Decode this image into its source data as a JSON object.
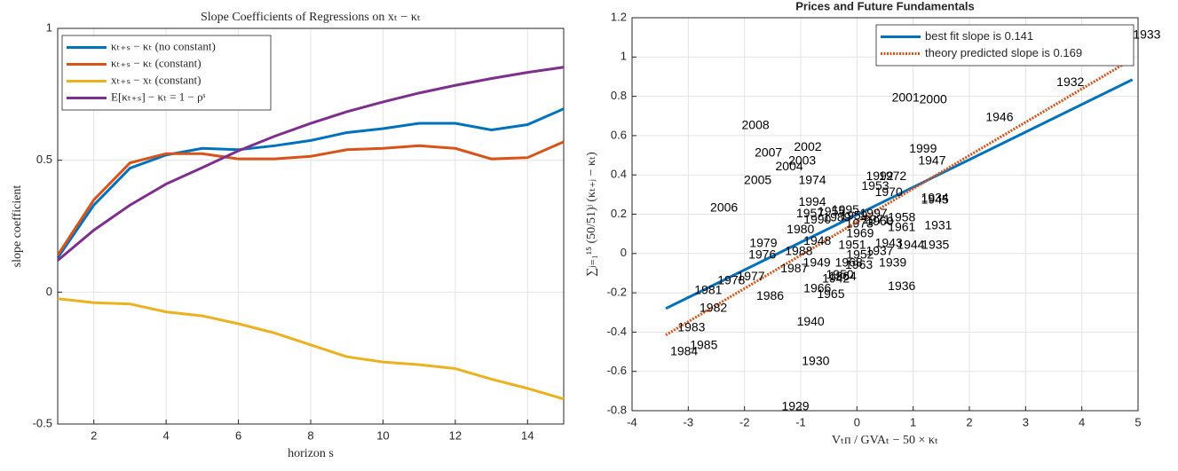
{
  "chart_data": [
    {
      "type": "line",
      "title": "Slope Coefficients of Regressions on xₜ − κₜ",
      "xlabel": "horizon s",
      "ylabel": "slope coefficient",
      "x": [
        1,
        2,
        3,
        4,
        5,
        6,
        7,
        8,
        9,
        10,
        11,
        12,
        13,
        14,
        15
      ],
      "xlim": [
        1,
        15
      ],
      "xticks": [
        2,
        4,
        6,
        8,
        10,
        12,
        14
      ],
      "ylim": [
        -0.5,
        1
      ],
      "yticks": [
        -0.5,
        0,
        0.5,
        1
      ],
      "grid": true,
      "legend": "upper left",
      "series": [
        {
          "name": "κₜ₊ₛ − κₜ (no constant)",
          "color": "#0072bd",
          "values": [
            0.13,
            0.33,
            0.47,
            0.52,
            0.545,
            0.54,
            0.555,
            0.575,
            0.605,
            0.62,
            0.64,
            0.64,
            0.615,
            0.635,
            0.695
          ]
        },
        {
          "name": "κₜ₊ₛ − κₜ (constant)",
          "color": "#d95319",
          "values": [
            0.14,
            0.35,
            0.49,
            0.525,
            0.525,
            0.505,
            0.505,
            0.515,
            0.54,
            0.545,
            0.555,
            0.545,
            0.505,
            0.51,
            0.57
          ]
        },
        {
          "name": "xₜ₊ₛ − xₜ (constant)",
          "color": "#edb120",
          "values": [
            -0.025,
            -0.04,
            -0.045,
            -0.075,
            -0.09,
            -0.12,
            -0.155,
            -0.2,
            -0.245,
            -0.265,
            -0.275,
            -0.29,
            -0.33,
            -0.365,
            -0.405
          ]
        },
        {
          "name": "E[κₜ₊ₛ] − κₜ = 1 − ρˢ",
          "color": "#7e2f8e",
          "values": [
            0.12,
            0.235,
            0.33,
            0.41,
            0.472,
            0.536,
            0.591,
            0.64,
            0.684,
            0.721,
            0.755,
            0.784,
            0.81,
            0.833,
            0.853
          ]
        }
      ]
    },
    {
      "type": "scatter",
      "title": "Prices and Future Fundamentals",
      "xlabel": "Vₜᴨ / GVAₜ − 50 × κₜ",
      "ylabel": "∑ⱼ₌₁¹⁵ (50/51)ʲ (κₜ₊ⱼ − κₜ)",
      "xlim": [
        -4,
        5
      ],
      "xticks": [
        -4,
        -3,
        -2,
        -1,
        0,
        1,
        2,
        3,
        4,
        5
      ],
      "ylim": [
        -0.8,
        1.2
      ],
      "yticks": [
        -0.8,
        -0.6,
        -0.4,
        -0.2,
        0,
        0.2,
        0.4,
        0.6,
        0.8,
        1,
        1.2
      ],
      "grid": true,
      "legend": "upper right",
      "points": {
        "labels": [
          "1929",
          "1930",
          "1940",
          "1984",
          "1985",
          "1983",
          "1982",
          "1981",
          "1978",
          "1977",
          "1986",
          "1966",
          "1965",
          "1936",
          "1939",
          "1976",
          "1979",
          "1987",
          "1988",
          "1949",
          "1948",
          "1980",
          "1969",
          "1961",
          "1931",
          "1945",
          "1934",
          "1970",
          "1953",
          "1974",
          "1992",
          "1972",
          "1947",
          "1999",
          "1946",
          "1932",
          "1933",
          "2001",
          "2000",
          "2008",
          "2002",
          "2007",
          "2003",
          "2004",
          "2005",
          "2006",
          "1943",
          "1944",
          "1935",
          "1937",
          "1951",
          "1952",
          "1963",
          "1968",
          "1942",
          "1950",
          "1994",
          "1957",
          "1958",
          "1960",
          "1955",
          "1959",
          "1971",
          "1990",
          "1995",
          "1997",
          "1989",
          "1973",
          "1964"
        ],
        "x": [
          -1.34,
          -0.98,
          -1.07,
          -3.32,
          -2.97,
          -3.19,
          -2.8,
          -2.89,
          -2.48,
          -2.13,
          -1.79,
          -0.95,
          -0.71,
          0.55,
          0.39,
          -1.93,
          -1.91,
          -1.36,
          -1.28,
          -0.96,
          -0.95,
          -1.25,
          -0.19,
          0.55,
          1.2,
          1.14,
          1.14,
          0.32,
          0.08,
          -1.04,
          0.16,
          0.39,
          1.09,
          0.93,
          2.29,
          3.55,
          4.91,
          0.62,
          1.11,
          -2.05,
          -1.12,
          -1.82,
          -1.22,
          -1.45,
          -2.01,
          -2.61,
          0.32,
          0.71,
          1.15,
          0.16,
          -0.33,
          -0.19,
          -0.21,
          -0.39,
          -0.62,
          -0.55,
          -1.04,
          -1.08,
          0.55,
          0.16,
          -0.7,
          -0.3,
          0.1,
          -0.95,
          -0.45,
          0.05,
          -0.6,
          -0.2,
          -0.5
        ],
        "y": [
          -0.78,
          -0.55,
          -0.35,
          -0.5,
          -0.47,
          -0.38,
          -0.28,
          -0.19,
          -0.14,
          -0.12,
          -0.22,
          -0.18,
          -0.21,
          -0.17,
          -0.05,
          -0.01,
          0.05,
          -0.08,
          0.01,
          -0.05,
          0.06,
          0.12,
          0.1,
          0.13,
          0.14,
          0.27,
          0.28,
          0.31,
          0.34,
          0.37,
          0.39,
          0.39,
          0.47,
          0.53,
          0.69,
          0.87,
          1.11,
          0.79,
          0.78,
          0.65,
          0.54,
          0.51,
          0.47,
          0.44,
          0.37,
          0.23,
          0.05,
          0.04,
          0.04,
          0.01,
          0.04,
          -0.01,
          -0.06,
          -0.05,
          -0.13,
          -0.11,
          0.26,
          0.2,
          0.18,
          0.16,
          0.21,
          0.19,
          0.17,
          0.17,
          0.22,
          0.2,
          0.18,
          0.15,
          -0.12
        ]
      },
      "series": [
        {
          "name": "best fit slope is 0.141",
          "color": "#0072bd",
          "style": "solid",
          "x": [
            -3.4,
            4.9
          ],
          "values": [
            -0.28,
            0.885
          ]
        },
        {
          "name": "theory predicted slope is 0.169",
          "color": "#d95319",
          "style": "dotted",
          "x": [
            -3.4,
            4.9
          ],
          "values": [
            -0.415,
            0.99
          ]
        }
      ]
    }
  ]
}
